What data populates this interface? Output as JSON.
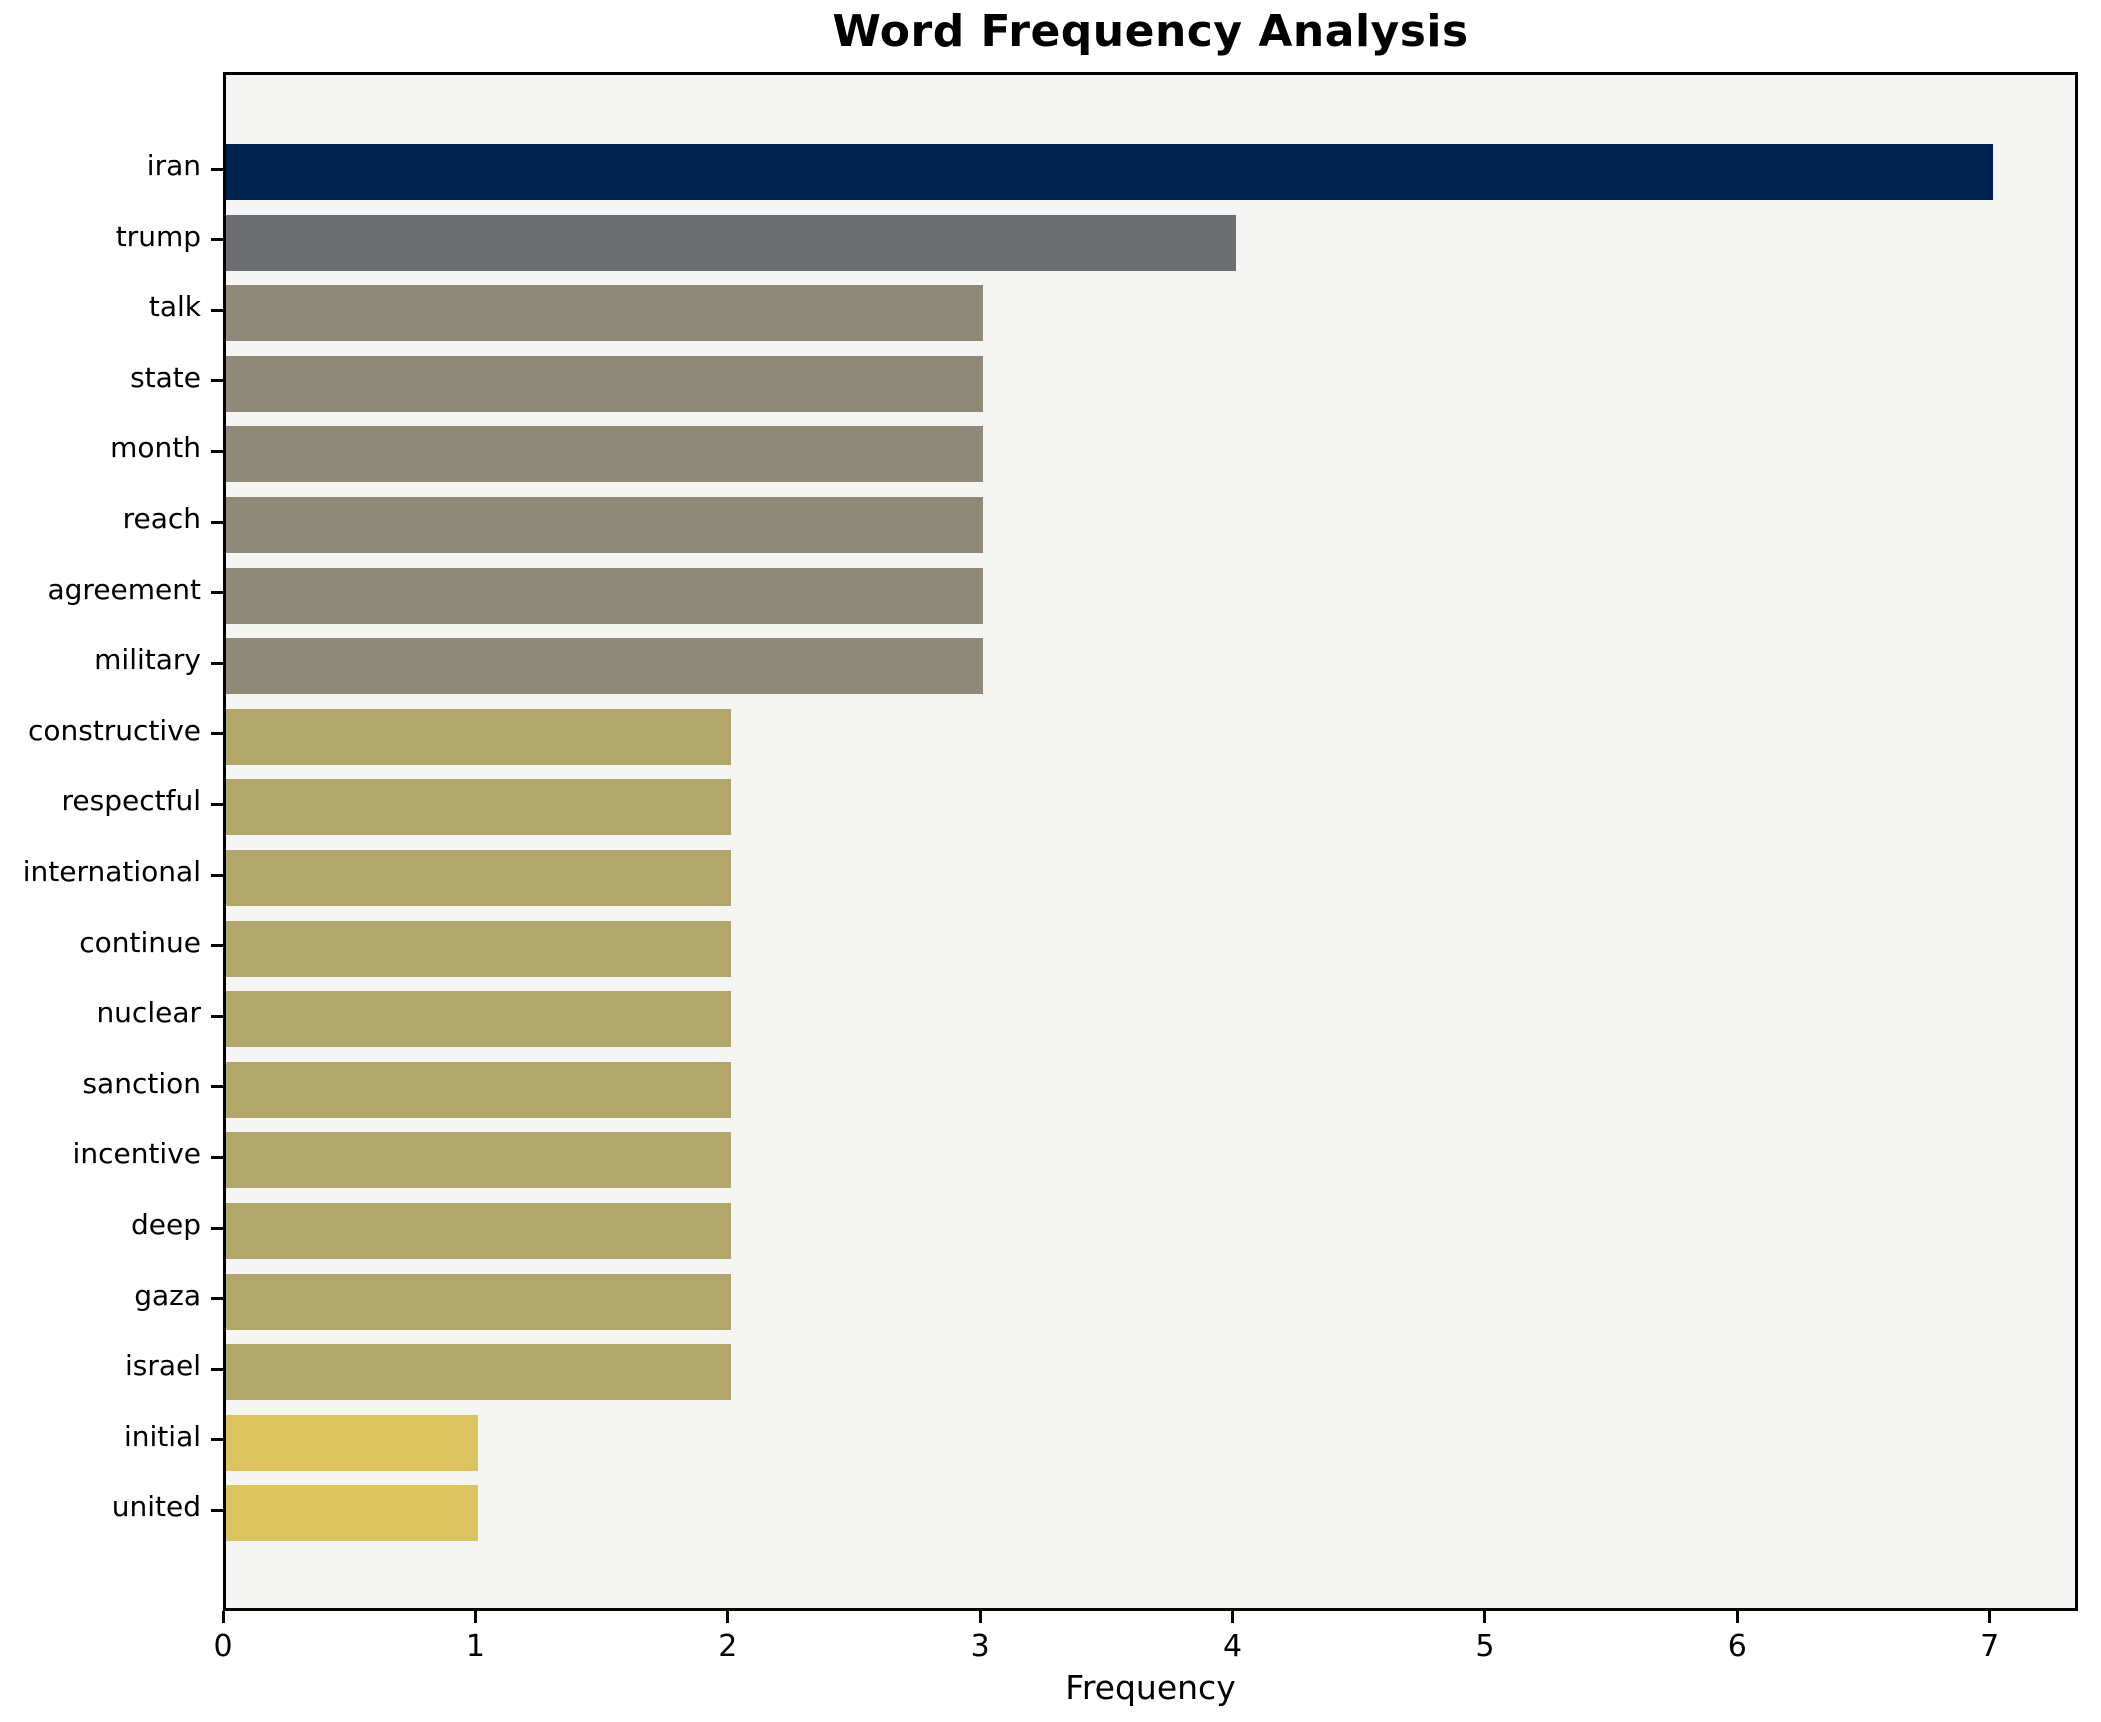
{
  "title": "Word Frequency Analysis",
  "chart_data": {
    "type": "bar",
    "orientation": "horizontal",
    "title": "Word Frequency Analysis",
    "xlabel": "Frequency",
    "ylabel": "",
    "categories": [
      "iran",
      "trump",
      "talk",
      "state",
      "month",
      "reach",
      "agreement",
      "military",
      "constructive",
      "respectful",
      "international",
      "continue",
      "nuclear",
      "sanction",
      "incentive",
      "deep",
      "gaza",
      "israel",
      "initial",
      "united"
    ],
    "values": [
      7,
      4,
      3,
      3,
      3,
      3,
      3,
      3,
      2,
      2,
      2,
      2,
      2,
      2,
      2,
      2,
      2,
      2,
      1,
      1
    ],
    "bar_colors": [
      "#00224e",
      "#6d6e72",
      "#8f897a",
      "#8f897a",
      "#8f897a",
      "#8f897a",
      "#8f897a",
      "#8f897a",
      "#b1a76c",
      "#b1a76c",
      "#b1a76c",
      "#b1a76c",
      "#b1a76c",
      "#b1a76c",
      "#b1a76c",
      "#b1a76c",
      "#b1a76c",
      "#b1a76c",
      "#dbc45d",
      "#dbc45d"
    ],
    "xlim": [
      0,
      7.35
    ],
    "x_ticks": [
      "0",
      "1",
      "2",
      "3",
      "4",
      "5",
      "6",
      "7"
    ],
    "grid": false,
    "legend": null,
    "colors": {
      "figure_background": "#ffffff",
      "axes_background": "#f5f5f3",
      "spine": "#000000",
      "text": "#000000"
    }
  }
}
